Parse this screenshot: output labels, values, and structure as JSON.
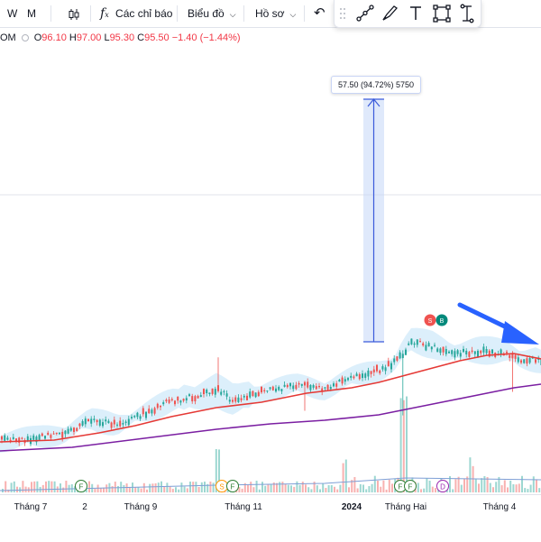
{
  "toolbar": {
    "intervals": [
      "W",
      "M"
    ],
    "indicators_label": "Các chỉ báo",
    "chart_type_label": "Biểu đồ",
    "profile_label": "Hồ sơ"
  },
  "legend": {
    "symbol_fragment": "OM",
    "open_label": "O",
    "open": "96.10",
    "high_label": "H",
    "high": "97.00",
    "low_label": "L",
    "low": "95.30",
    "close_label": "C",
    "close": "95.50",
    "change": "−1.40 (−1.44%)"
  },
  "measure_label": "57.50 (94.72%) 5750",
  "markers": {
    "event_letters": [
      "F",
      "S",
      "F",
      "F",
      "F",
      "D"
    ],
    "signal_sell": "S",
    "signal_buy": "B"
  },
  "colors": {
    "up": "#26a69a",
    "down": "#ef5350",
    "ma_fast": "#e53935",
    "ma_slow": "#7b1fa2",
    "band": "#bfe1f7",
    "measure": "#3b5bdb",
    "arrow": "#2962ff"
  },
  "chart_data": {
    "type": "candlestick",
    "x_ticks": [
      "Tháng 7",
      "2",
      "Tháng 9",
      "Tháng 11",
      "2024",
      "Tháng Hai",
      "Tháng 4"
    ],
    "bold_ticks": [
      "2024"
    ],
    "series": [
      {
        "type": "candlestick"
      },
      {
        "type": "line"
      },
      {
        "type": "line"
      },
      {
        "type": "band"
      },
      {
        "type": "bar",
        "panel": "volume"
      }
    ],
    "annotations": [
      "57.50 (94.72%) 5750"
    ]
  }
}
